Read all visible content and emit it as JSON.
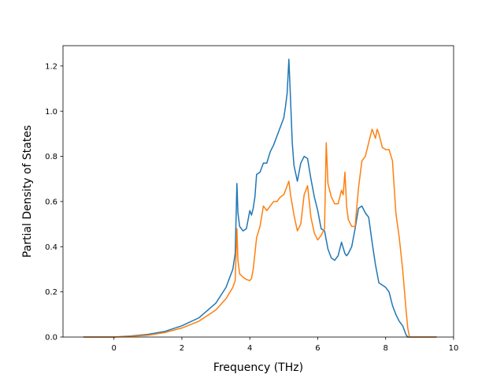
{
  "chart_data": {
    "type": "line",
    "title": "",
    "xlabel": "Frequency (THz)",
    "ylabel": "Partial Density of States",
    "xlim": [
      -1.5,
      10.0
    ],
    "ylim": [
      0.0,
      1.29
    ],
    "xticks": [
      0,
      2,
      4,
      6,
      8,
      10
    ],
    "xtick_labels": [
      "0",
      "2",
      "4",
      "6",
      "8",
      "10"
    ],
    "yticks": [
      0.0,
      0.2,
      0.4,
      0.6,
      0.8,
      1.0,
      1.2
    ],
    "ytick_labels": [
      "0.0",
      "0.2",
      "0.4",
      "0.6",
      "0.8",
      "1.0",
      "1.2"
    ],
    "grid": false,
    "series": [
      {
        "color": "#1f77b4",
        "x": [
          -0.9,
          0.0,
          0.5,
          1.0,
          1.5,
          2.0,
          2.5,
          3.0,
          3.3,
          3.5,
          3.57,
          3.62,
          3.65,
          3.7,
          3.8,
          3.9,
          4.0,
          4.05,
          4.1,
          4.15,
          4.2,
          4.3,
          4.4,
          4.5,
          4.6,
          4.7,
          4.8,
          4.9,
          5.0,
          5.05,
          5.1,
          5.15,
          5.2,
          5.25,
          5.3,
          5.4,
          5.5,
          5.6,
          5.7,
          5.8,
          5.9,
          6.0,
          6.1,
          6.2,
          6.3,
          6.4,
          6.5,
          6.6,
          6.7,
          6.8,
          6.85,
          6.9,
          7.0,
          7.1,
          7.2,
          7.3,
          7.4,
          7.5,
          7.6,
          7.7,
          7.8,
          7.9,
          8.0,
          8.1,
          8.2,
          8.3,
          8.4,
          8.5,
          8.6,
          8.65,
          8.7,
          9.0,
          9.5
        ],
        "y": [
          0.0,
          0.0,
          0.005,
          0.012,
          0.025,
          0.05,
          0.085,
          0.15,
          0.22,
          0.3,
          0.37,
          0.68,
          0.55,
          0.49,
          0.47,
          0.48,
          0.56,
          0.54,
          0.57,
          0.62,
          0.72,
          0.73,
          0.77,
          0.77,
          0.82,
          0.85,
          0.89,
          0.93,
          0.97,
          1.02,
          1.08,
          1.23,
          1.05,
          0.86,
          0.76,
          0.69,
          0.77,
          0.8,
          0.79,
          0.7,
          0.62,
          0.56,
          0.48,
          0.47,
          0.39,
          0.35,
          0.34,
          0.36,
          0.42,
          0.37,
          0.36,
          0.37,
          0.4,
          0.48,
          0.57,
          0.58,
          0.55,
          0.53,
          0.42,
          0.32,
          0.24,
          0.23,
          0.22,
          0.2,
          0.14,
          0.1,
          0.07,
          0.05,
          0.01,
          0.0,
          0.0,
          0.0,
          0.0
        ]
      },
      {
        "color": "#ff7f0e",
        "x": [
          -0.9,
          0.0,
          0.5,
          1.0,
          1.5,
          2.0,
          2.5,
          3.0,
          3.3,
          3.5,
          3.57,
          3.62,
          3.65,
          3.7,
          3.8,
          3.9,
          4.0,
          4.05,
          4.1,
          4.2,
          4.3,
          4.4,
          4.5,
          4.6,
          4.7,
          4.8,
          4.9,
          5.0,
          5.1,
          5.15,
          5.2,
          5.3,
          5.4,
          5.5,
          5.6,
          5.7,
          5.8,
          5.9,
          6.0,
          6.1,
          6.2,
          6.25,
          6.3,
          6.4,
          6.5,
          6.6,
          6.7,
          6.75,
          6.8,
          6.85,
          6.9,
          7.0,
          7.1,
          7.2,
          7.3,
          7.4,
          7.5,
          7.6,
          7.7,
          7.75,
          7.8,
          7.9,
          8.0,
          8.1,
          8.2,
          8.3,
          8.4,
          8.5,
          8.6,
          8.65,
          8.7,
          9.0,
          9.5
        ],
        "y": [
          0.0,
          0.0,
          0.003,
          0.008,
          0.02,
          0.04,
          0.07,
          0.12,
          0.17,
          0.22,
          0.25,
          0.48,
          0.34,
          0.28,
          0.265,
          0.255,
          0.25,
          0.26,
          0.3,
          0.44,
          0.49,
          0.58,
          0.56,
          0.58,
          0.6,
          0.6,
          0.62,
          0.63,
          0.67,
          0.69,
          0.63,
          0.54,
          0.47,
          0.5,
          0.63,
          0.67,
          0.53,
          0.46,
          0.43,
          0.45,
          0.48,
          0.86,
          0.68,
          0.62,
          0.59,
          0.59,
          0.65,
          0.63,
          0.73,
          0.58,
          0.52,
          0.49,
          0.49,
          0.66,
          0.78,
          0.8,
          0.86,
          0.92,
          0.88,
          0.92,
          0.9,
          0.84,
          0.83,
          0.83,
          0.78,
          0.55,
          0.44,
          0.3,
          0.12,
          0.04,
          0.0,
          0.0,
          0.0
        ]
      }
    ]
  }
}
